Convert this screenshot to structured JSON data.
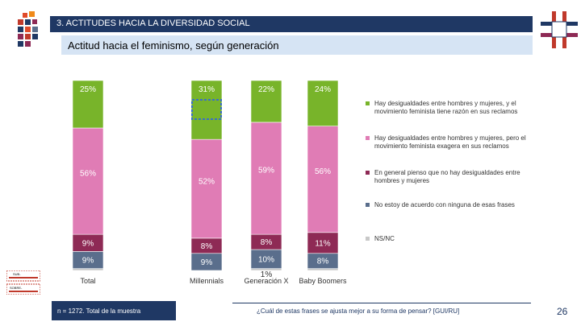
{
  "header": {
    "section_title": "3. ACTITUDES HACIA LA DIVERSIDAD SOCIAL",
    "subtitle": "Actitud hacia el feminismo, según generación"
  },
  "colors": {
    "navy": "#1f3864",
    "green": "#78b42a",
    "pink": "#e07cb5",
    "maroon": "#8e2a55",
    "gray_blue": "#5a6e8c",
    "light_gray": "#c8c8c8"
  },
  "chart_data": {
    "type": "bar",
    "stacked": true,
    "categories": [
      "Total",
      "Millennials",
      "Generación X",
      "Baby Boomers"
    ],
    "series": [
      {
        "name": "Hay desigualdades entre hombres y mujeres, y el movimiento feminista tiene razón en sus reclamos",
        "values": [
          25,
          31,
          22,
          24
        ],
        "labels": [
          "25%",
          "31%",
          "22%",
          "24%"
        ],
        "color": "#78b42a"
      },
      {
        "name": "Hay desigualdades entre hombres y mujeres, pero el movimiento feminista exagera en sus reclamos",
        "values": [
          56,
          52,
          59,
          56
        ],
        "labels": [
          "56%",
          "52%",
          "59%",
          "56%"
        ],
        "color": "#e07cb5"
      },
      {
        "name": "En general pienso que no hay desigualdades entre hombres y mujeres",
        "values": [
          9,
          8,
          8,
          11
        ],
        "labels": [
          "9%",
          "8%",
          "8%",
          "11%"
        ],
        "color": "#8e2a55"
      },
      {
        "name": "No estoy de acuerdo con ninguna de esas frases",
        "values": [
          9,
          9,
          10,
          8
        ],
        "labels": [
          "9%",
          "9%",
          "10%",
          "8%"
        ],
        "color": "#5a6e8c"
      },
      {
        "name": "NS/NC",
        "values": [
          1,
          0,
          1,
          1
        ],
        "labels": [
          "",
          "",
          "1%",
          ""
        ],
        "color": "#c8c8c8"
      }
    ],
    "legend_position": "right",
    "highlight": {
      "category": "Millennials",
      "series": "Hay desigualdades entre hombres y mujeres, y el movimiento feminista tiene razón en sus reclamos"
    }
  },
  "stamp": {
    "line1": "SUB-",
    "line2": "SOBRE-"
  },
  "footer": {
    "sample": "n = 1272. Total de la muestra",
    "question": "¿Cuál de estas frases se ajusta mejor a su forma de pensar? [GUI/RU]",
    "page_number": "26"
  }
}
